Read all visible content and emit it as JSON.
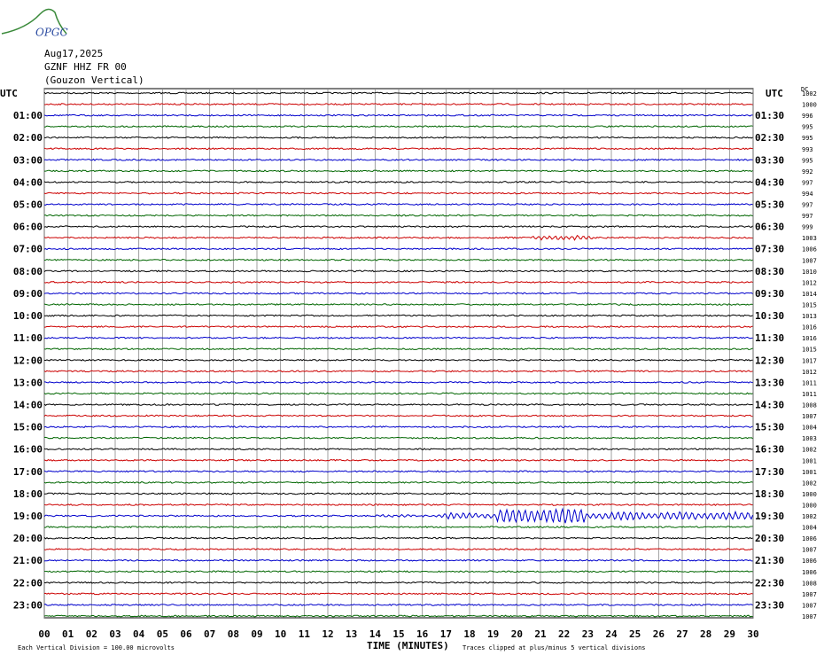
{
  "logo": "OPGC",
  "header": {
    "date": "Aug17,2025",
    "station": "GZNF HHZ FR 00",
    "location": "(Gouzon Vertical)"
  },
  "utc_left": "UTC",
  "utc_right": "UTC",
  "dc_header": "DC",
  "left_labels": [
    null,
    null,
    "01:00",
    null,
    "02:00",
    null,
    "03:00",
    null,
    "04:00",
    null,
    "05:00",
    null,
    "06:00",
    null,
    "07:00",
    null,
    "08:00",
    null,
    "09:00",
    null,
    "10:00",
    null,
    "11:00",
    null,
    "12:00",
    null,
    "13:00",
    null,
    "14:00",
    null,
    "15:00",
    null,
    "16:00",
    null,
    "17:00",
    null,
    "18:00",
    null,
    "19:00",
    null,
    "20:00",
    null,
    "21:00",
    null,
    "22:00",
    null,
    "23:00",
    null
  ],
  "right_labels": [
    null,
    null,
    "01:30",
    null,
    "02:30",
    null,
    "03:30",
    null,
    "04:30",
    null,
    "05:30",
    null,
    "06:30",
    null,
    "07:30",
    null,
    "08:30",
    null,
    "09:30",
    null,
    "10:30",
    null,
    "11:30",
    null,
    "12:30",
    null,
    "13:30",
    null,
    "14:30",
    null,
    "15:30",
    null,
    "16:30",
    null,
    "17:30",
    null,
    "18:30",
    null,
    "19:30",
    null,
    "20:30",
    null,
    "21:30",
    null,
    "22:30",
    null,
    "23:30",
    null
  ],
  "dc_values": [
    1002,
    1000,
    996,
    995,
    995,
    993,
    995,
    992,
    997,
    994,
    997,
    997,
    999,
    1003,
    1006,
    1007,
    1010,
    1012,
    1014,
    1015,
    1013,
    1016,
    1016,
    1015,
    1017,
    1012,
    1011,
    1011,
    1008,
    1007,
    1004,
    1003,
    1002,
    1001,
    1001,
    1002,
    1000,
    1000,
    1002,
    1004,
    1006,
    1007,
    1006,
    1006,
    1008,
    1007,
    1007,
    1007
  ],
  "x_ticks": [
    "00",
    "01",
    "02",
    "03",
    "04",
    "05",
    "06",
    "07",
    "08",
    "09",
    "10",
    "11",
    "12",
    "13",
    "14",
    "15",
    "16",
    "17",
    "18",
    "19",
    "20",
    "21",
    "22",
    "23",
    "24",
    "25",
    "26",
    "27",
    "28",
    "29",
    "30"
  ],
  "x_title": "TIME (MINUTES)",
  "footer_left": "Each Vertical Division =  100.00 microvolts",
  "footer_right": "Traces clipped at plus/minus 5 vertical divisions",
  "trace_colors": [
    "#000000",
    "#cc0000",
    "#0000cc",
    "#006600"
  ]
}
